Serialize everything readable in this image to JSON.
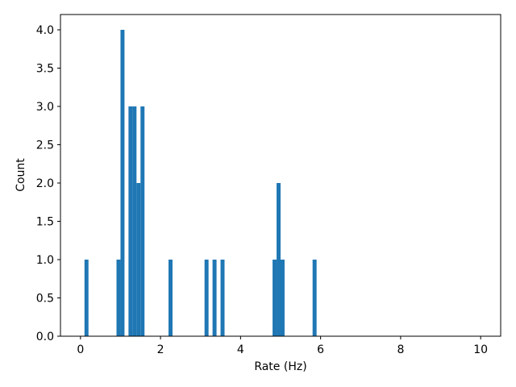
{
  "chart_data": {
    "type": "bar",
    "subtype": "histogram",
    "title": "",
    "xlabel": "Rate (Hz)",
    "ylabel": "Count",
    "xlim": [
      -0.5,
      10.5
    ],
    "ylim": [
      0,
      4.2
    ],
    "xticks": [
      0,
      2,
      4,
      6,
      8,
      10
    ],
    "xtick_labels": [
      "0",
      "2",
      "4",
      "6",
      "8",
      "10"
    ],
    "yticks": [
      0,
      0.5,
      1,
      1.5,
      2,
      2.5,
      3,
      3.5,
      4
    ],
    "ytick_labels": [
      "0.0",
      "0.5",
      "1.0",
      "1.5",
      "2.0",
      "2.5",
      "3.0",
      "3.5",
      "4.0"
    ],
    "bin_width": 0.1,
    "bar_color": "#1f77b4",
    "grid": false,
    "bins": [
      {
        "x0": 0.1,
        "x1": 0.2,
        "count": 1
      },
      {
        "x0": 0.9,
        "x1": 1.0,
        "count": 1
      },
      {
        "x0": 1.0,
        "x1": 1.1,
        "count": 4
      },
      {
        "x0": 1.2,
        "x1": 1.3,
        "count": 3
      },
      {
        "x0": 1.3,
        "x1": 1.4,
        "count": 3
      },
      {
        "x0": 1.4,
        "x1": 1.5,
        "count": 2
      },
      {
        "x0": 1.5,
        "x1": 1.6,
        "count": 3
      },
      {
        "x0": 2.2,
        "x1": 2.3,
        "count": 1
      },
      {
        "x0": 3.1,
        "x1": 3.2,
        "count": 1
      },
      {
        "x0": 3.3,
        "x1": 3.4,
        "count": 1
      },
      {
        "x0": 3.5,
        "x1": 3.6,
        "count": 1
      },
      {
        "x0": 4.8,
        "x1": 4.9,
        "count": 1
      },
      {
        "x0": 4.9,
        "x1": 5.0,
        "count": 2
      },
      {
        "x0": 5.0,
        "x1": 5.1,
        "count": 1
      },
      {
        "x0": 5.8,
        "x1": 5.9,
        "count": 1
      }
    ]
  }
}
